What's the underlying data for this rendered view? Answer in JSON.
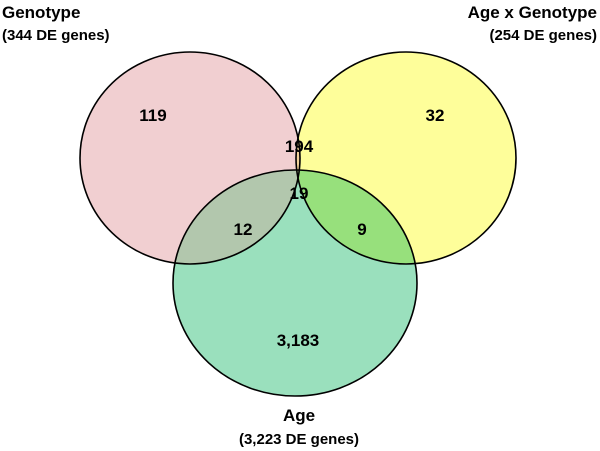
{
  "sets": {
    "genotype": {
      "name": "Genotype",
      "subtitle": "(344 DE genes)",
      "total": 344,
      "color": "#f1cfd1"
    },
    "age_x_genotype": {
      "name": "Age x Genotype",
      "subtitle": "(254 DE genes)",
      "total": 254,
      "color": "#fefe9a"
    },
    "age": {
      "name": "Age",
      "subtitle": "(3,223 DE genes)",
      "total": 3223,
      "color": "#9ae0bd"
    }
  },
  "regions": {
    "genotype_only": {
      "label": "119",
      "value": 119
    },
    "age_x_genotype_only": {
      "label": "32",
      "value": 32
    },
    "genotype_and_age_x_genotype": {
      "label": "194",
      "value": 194
    },
    "all_three": {
      "label": "19",
      "value": 19
    },
    "genotype_and_age": {
      "label": "12",
      "value": 12
    },
    "age_x_genotype_and_age": {
      "label": "9",
      "value": 9
    },
    "age_only": {
      "label": "3,183",
      "value": 3183
    }
  },
  "overlap_colors": {
    "genotype_and_age_x_genotype": "#f2d39c",
    "genotype_and_age": "#b2c7ad",
    "age_x_genotype_and_age": "#97e07c",
    "all_three": "#b4d19a"
  }
}
